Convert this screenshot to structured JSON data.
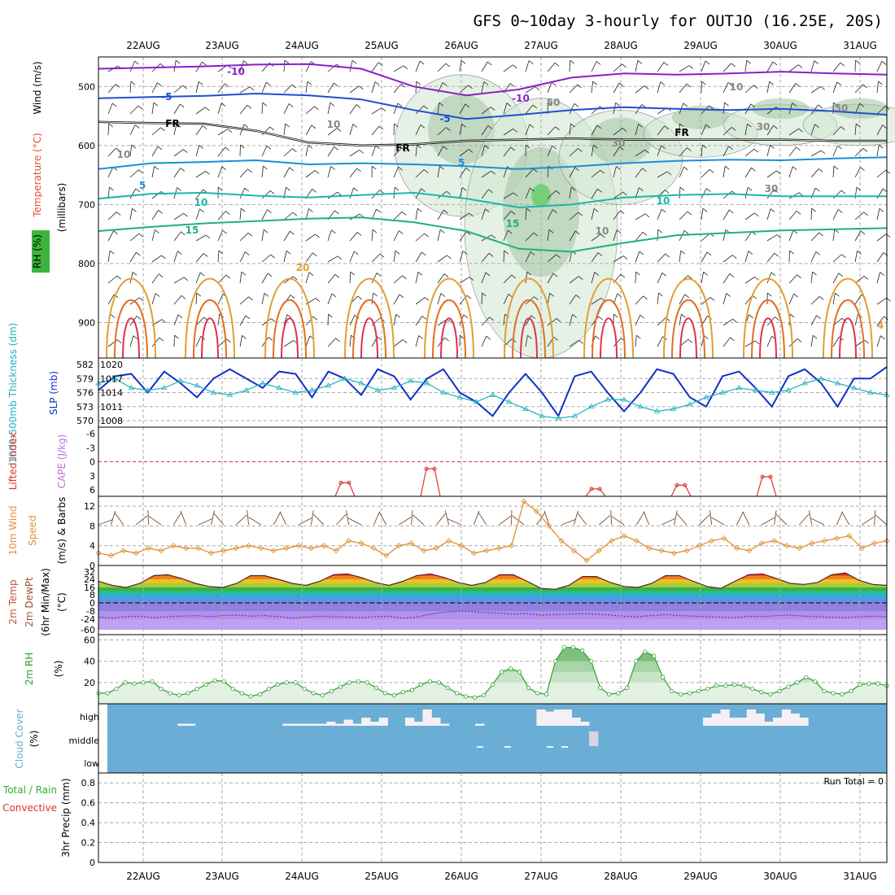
{
  "title": "GFS 0~10day 3-hourly for OUTJO (16.25E, 20S)",
  "dates": [
    "22AUG",
    "23AUG",
    "24AUG",
    "25AUG",
    "26AUG",
    "27AUG",
    "28AUG",
    "29AUG",
    "30AUG",
    "31AUG"
  ],
  "colors": {
    "temp_minus10": "#8a1fc8",
    "temp_minus5": "#1f4fd0",
    "temp_5": "#1a8fd8",
    "temp_10": "#1ab8a8",
    "temp_15": "#20b080",
    "temp_20": "#e0a030",
    "temp_25": "#e07020",
    "temp_30": "#e03050",
    "slp": "#1030c8",
    "thickness": "#20b0c0",
    "wind10m": "#e09030",
    "rh2m": "#30a030",
    "cloud_bg": "#6aaed6",
    "lifted": "#e03030"
  },
  "chart_data": [
    {
      "type": "heatmap",
      "panel": "Upper-air cross section",
      "ylabel_parts": {
        "wind": "Wind (m/s)",
        "temp": "Temperature (°C)",
        "rh": "RH (%)",
        "unit": "(millibars)"
      },
      "y_ticks": [
        "500",
        "600",
        "700",
        "800",
        "900"
      ],
      "ylim": [
        960,
        450
      ],
      "contour_labels": [
        {
          "text": "-10"
        },
        {
          "text": "-10"
        },
        {
          "text": "-5"
        },
        {
          "text": "-5"
        },
        {
          "text": "FR"
        },
        {
          "text": "FR"
        },
        {
          "text": "FR"
        },
        {
          "text": "5"
        },
        {
          "text": "5"
        },
        {
          "text": "10"
        },
        {
          "text": "10"
        },
        {
          "text": "15"
        },
        {
          "text": "15"
        },
        {
          "text": "20"
        },
        {
          "text": "4"
        },
        {
          "text": "10"
        },
        {
          "text": "10"
        },
        {
          "text": "10"
        },
        {
          "text": "50"
        },
        {
          "text": "50"
        },
        {
          "text": "30"
        },
        {
          "text": "30"
        },
        {
          "text": "30"
        },
        {
          "text": "10"
        }
      ],
      "isotherms": [
        {
          "name": "-10",
          "values": [
            470,
            468,
            466,
            463,
            462,
            470,
            500,
            515,
            505,
            485,
            478,
            480,
            478,
            475,
            478,
            480
          ]
        },
        {
          "name": "-5",
          "values": [
            520,
            518,
            516,
            512,
            515,
            522,
            540,
            555,
            548,
            540,
            535,
            538,
            540,
            538,
            542,
            548
          ]
        },
        {
          "name": "FR",
          "values": [
            560,
            562,
            563,
            575,
            595,
            600,
            598,
            592,
            590,
            588,
            590,
            590,
            590,
            590,
            592,
            592
          ]
        },
        {
          "name": "5",
          "values": [
            640,
            630,
            628,
            625,
            632,
            630,
            632,
            635,
            640,
            636,
            630,
            626,
            624,
            625,
            622,
            620
          ]
        },
        {
          "name": "10",
          "values": [
            690,
            682,
            680,
            685,
            688,
            684,
            680,
            690,
            705,
            700,
            688,
            684,
            682,
            686,
            686,
            686
          ]
        },
        {
          "name": "15",
          "values": [
            745,
            738,
            732,
            728,
            724,
            722,
            730,
            745,
            775,
            780,
            765,
            752,
            748,
            744,
            742,
            740
          ]
        }
      ],
      "rh_shading": [
        {
          "day": "26AUG",
          "level_range": [
            480,
            720
          ],
          "max_rh": 70
        },
        {
          "day": "27AUG",
          "level_range": [
            520,
            960
          ],
          "max_rh": 90
        },
        {
          "day": "28AUG",
          "level_range": [
            540,
            700
          ],
          "max_rh": 60
        },
        {
          "day": "29AUG",
          "level_range": [
            540,
            620
          ],
          "max_rh": 50
        },
        {
          "day": "30AUG",
          "level_range": [
            530,
            600
          ],
          "max_rh": 50
        },
        {
          "day": "31AUG",
          "level_range": [
            530,
            600
          ],
          "max_rh": 50
        }
      ]
    },
    {
      "type": "line",
      "panel": "SLP and thickness",
      "ylabel": "1000-500mb Thickness (dm)",
      "ylabel2": "SLP (mb)",
      "left_ticks": [
        "582",
        "579",
        "576",
        "573",
        "570"
      ],
      "right_ticks": [
        "1020",
        "1017",
        "1014",
        "1011",
        "1008"
      ],
      "series": [
        {
          "name": "SLP (mb)",
          "axis": "right",
          "values": [
            1014.5,
            1017.5,
            1018,
            1014,
            1018.5,
            1016,
            1013,
            1017,
            1019,
            1017,
            1015,
            1018.5,
            1018,
            1013,
            1018.5,
            1017,
            1013.5,
            1019,
            1017.5,
            1012.5,
            1017,
            1019,
            1014,
            1012,
            1009,
            1014,
            1018,
            1014,
            1009,
            1017.5,
            1018.5,
            1014,
            1010,
            1014,
            1019,
            1018,
            1013,
            1011,
            1017.5,
            1018.5,
            1015,
            1011,
            1017.5,
            1019,
            1016,
            1011,
            1017,
            1017,
            1019.5
          ]
        },
        {
          "name": "1000-500mb Thickness (dm)",
          "axis": "left",
          "values": [
            578,
            579,
            577,
            576.5,
            577,
            578.5,
            577.5,
            576,
            575.5,
            576.5,
            578,
            577,
            576,
            576.5,
            577.5,
            579,
            578,
            576.5,
            577,
            578.5,
            578,
            576,
            575,
            574,
            575.5,
            574,
            572.5,
            571,
            570.5,
            571,
            573,
            574.5,
            574.5,
            573,
            572,
            572.5,
            573.5,
            575,
            576,
            577,
            576.5,
            576,
            576.5,
            578,
            579,
            578,
            577,
            576,
            575.5
          ]
        }
      ]
    },
    {
      "type": "line",
      "panel": "Lifted index and CAPE",
      "ylabel": "Lifted Index",
      "ylabel2": "CAPE (J/kg)",
      "y_ticks": [
        "-6",
        "-3",
        "0",
        "3",
        "6"
      ],
      "ylim": [
        -6,
        6
      ],
      "series": [
        {
          "name": "Lifted Index",
          "x": [
            "25AUG",
            "26AUG",
            "28AUG",
            "29AUG",
            "30AUG"
          ],
          "values": [
            4.5,
            1.5,
            5.8,
            5.0,
            3.2
          ]
        }
      ]
    },
    {
      "type": "line",
      "panel": "10m wind",
      "ylabel": "10m Wind Speed (m/s) & Barbs",
      "y_ticks": [
        "12",
        "8",
        "4",
        "0"
      ],
      "ylim": [
        0,
        14
      ],
      "series": [
        {
          "name": "Speed",
          "values": [
            2.5,
            2,
            3,
            2.5,
            3.5,
            3,
            4,
            3.5,
            3.5,
            2.5,
            3,
            3.5,
            4,
            3.5,
            3,
            3.5,
            4,
            3.5,
            4,
            3,
            5,
            4.5,
            3.5,
            2,
            4,
            4.5,
            3,
            3.5,
            5,
            4,
            2.5,
            3,
            3.5,
            4,
            13,
            11,
            8,
            5,
            3,
            1,
            3,
            5,
            6,
            5,
            3.5,
            3,
            2.5,
            3,
            4,
            5,
            5.5,
            3.5,
            3,
            4.5,
            5,
            4,
            3.5,
            4.5,
            5,
            5.5,
            6,
            3.5,
            4.5,
            5
          ]
        }
      ]
    },
    {
      "type": "area",
      "panel": "2m temperature",
      "ylabel": "2m Temp 2m DewPt (6hr Min/Max) (°C)",
      "y_ticks": [
        "32",
        "24",
        "16",
        "8",
        "0",
        "-8",
        "-24",
        "-60"
      ],
      "series": [
        {
          "name": "2m Temp",
          "values": [
            22,
            18,
            16,
            20,
            28,
            29,
            25,
            20,
            17,
            16,
            20,
            28,
            28,
            24,
            20,
            18,
            22,
            29,
            30,
            26,
            21,
            18,
            22,
            28,
            30,
            26,
            21,
            18,
            21,
            29,
            29,
            22,
            15,
            14,
            18,
            27,
            27,
            21,
            17,
            16,
            20,
            28,
            28,
            22,
            17,
            15,
            22,
            29,
            30,
            25,
            20,
            19,
            21,
            29,
            31,
            23,
            19,
            18
          ]
        },
        {
          "name": "2m DewPt",
          "values": [
            -20,
            -22,
            -19,
            -18,
            -21,
            -19,
            -18,
            -17,
            -19,
            -17,
            -16,
            -18,
            -17,
            -19,
            -22,
            -20,
            -18,
            -19,
            -20,
            -21,
            -19,
            -18,
            -22,
            -20,
            -14,
            -10,
            -8,
            -9,
            -11,
            -12,
            -14,
            -13,
            -16,
            -15,
            -14,
            -13,
            -14,
            -16,
            -18,
            -19,
            -17,
            -15,
            -17,
            -18,
            -19,
            -20,
            -21,
            -18,
            -19,
            -17,
            -16,
            -18,
            -19,
            -20,
            -21,
            -19,
            -18,
            -19
          ]
        }
      ]
    },
    {
      "type": "area",
      "panel": "2m RH",
      "ylabel": "2m RH (%)",
      "y_ticks": [
        "60",
        "40",
        "20"
      ],
      "ylim": [
        0,
        65
      ],
      "series": [
        {
          "name": "2m RH",
          "values": [
            10,
            10,
            14,
            20,
            19,
            20,
            21,
            14,
            10,
            8,
            10,
            14,
            18,
            22,
            21,
            14,
            10,
            7,
            9,
            14,
            18,
            20,
            20,
            14,
            10,
            8,
            12,
            16,
            20,
            21,
            20,
            15,
            10,
            8,
            11,
            13,
            18,
            21,
            20,
            15,
            10,
            7,
            6,
            8,
            18,
            30,
            33,
            30,
            15,
            10,
            9,
            40,
            53,
            53,
            50,
            40,
            15,
            9,
            10,
            15,
            40,
            49,
            45,
            25,
            12,
            9,
            10,
            12,
            14,
            17,
            17,
            18,
            17,
            14,
            11,
            9,
            12,
            16,
            20,
            25,
            21,
            12,
            10,
            9,
            12,
            18,
            19,
            19,
            17
          ]
        }
      ]
    },
    {
      "type": "bar",
      "panel": "Cloud cover",
      "ylabel": "Cloud Cover (%)",
      "categories": [
        "high",
        "middle",
        "low"
      ],
      "high_cover": [
        0,
        0,
        0,
        0,
        0,
        0,
        0,
        0,
        5,
        5,
        0,
        0,
        0,
        0,
        0,
        0,
        0,
        0,
        0,
        0,
        5,
        5,
        5,
        5,
        5,
        10,
        5,
        15,
        5,
        20,
        10,
        20,
        0,
        0,
        20,
        10,
        40,
        20,
        5,
        0,
        0,
        0,
        5,
        0,
        0,
        0,
        0,
        0,
        0,
        40,
        35,
        40,
        40,
        20,
        10,
        0,
        0,
        0,
        0,
        0,
        0,
        0,
        0,
        0,
        0,
        0,
        0,
        0,
        20,
        30,
        40,
        20,
        20,
        40,
        30,
        10,
        20,
        40,
        30,
        20,
        0,
        0,
        0,
        0,
        0,
        0,
        0,
        0,
        0
      ],
      "middle_cover": [
        0,
        0,
        0,
        0,
        0,
        0,
        0,
        0,
        0,
        0,
        0,
        0,
        0,
        0,
        0,
        0,
        0,
        0,
        0,
        0,
        0,
        0,
        0,
        0,
        0,
        0,
        0,
        0,
        0,
        0,
        0,
        0,
        0,
        0,
        0,
        0,
        0,
        0,
        0,
        0,
        0,
        0,
        0,
        0,
        0,
        0,
        0,
        0,
        0,
        0,
        0,
        0,
        0,
        0,
        0,
        30,
        0,
        0,
        0,
        0,
        0,
        0,
        0,
        0,
        0,
        0,
        0,
        0,
        0,
        0,
        0,
        0,
        0,
        0,
        0,
        0,
        0,
        0,
        0,
        0,
        0,
        0,
        0,
        0,
        0,
        0,
        0,
        0,
        0
      ]
    },
    {
      "type": "bar",
      "panel": "3hr Precip",
      "ylabel": "Total / Rain Convective 3hr Precip (mm)",
      "ylabel_parts": {
        "total": "Total / Rain",
        "conv": "Convective",
        "unit": "3hr Precip (mm)"
      },
      "y_ticks": [
        "0.8",
        "0.6",
        "0.4",
        "0.2",
        "0"
      ],
      "ylim": [
        0,
        0.9
      ],
      "values": [],
      "run_total": "Run Total = 0"
    }
  ]
}
